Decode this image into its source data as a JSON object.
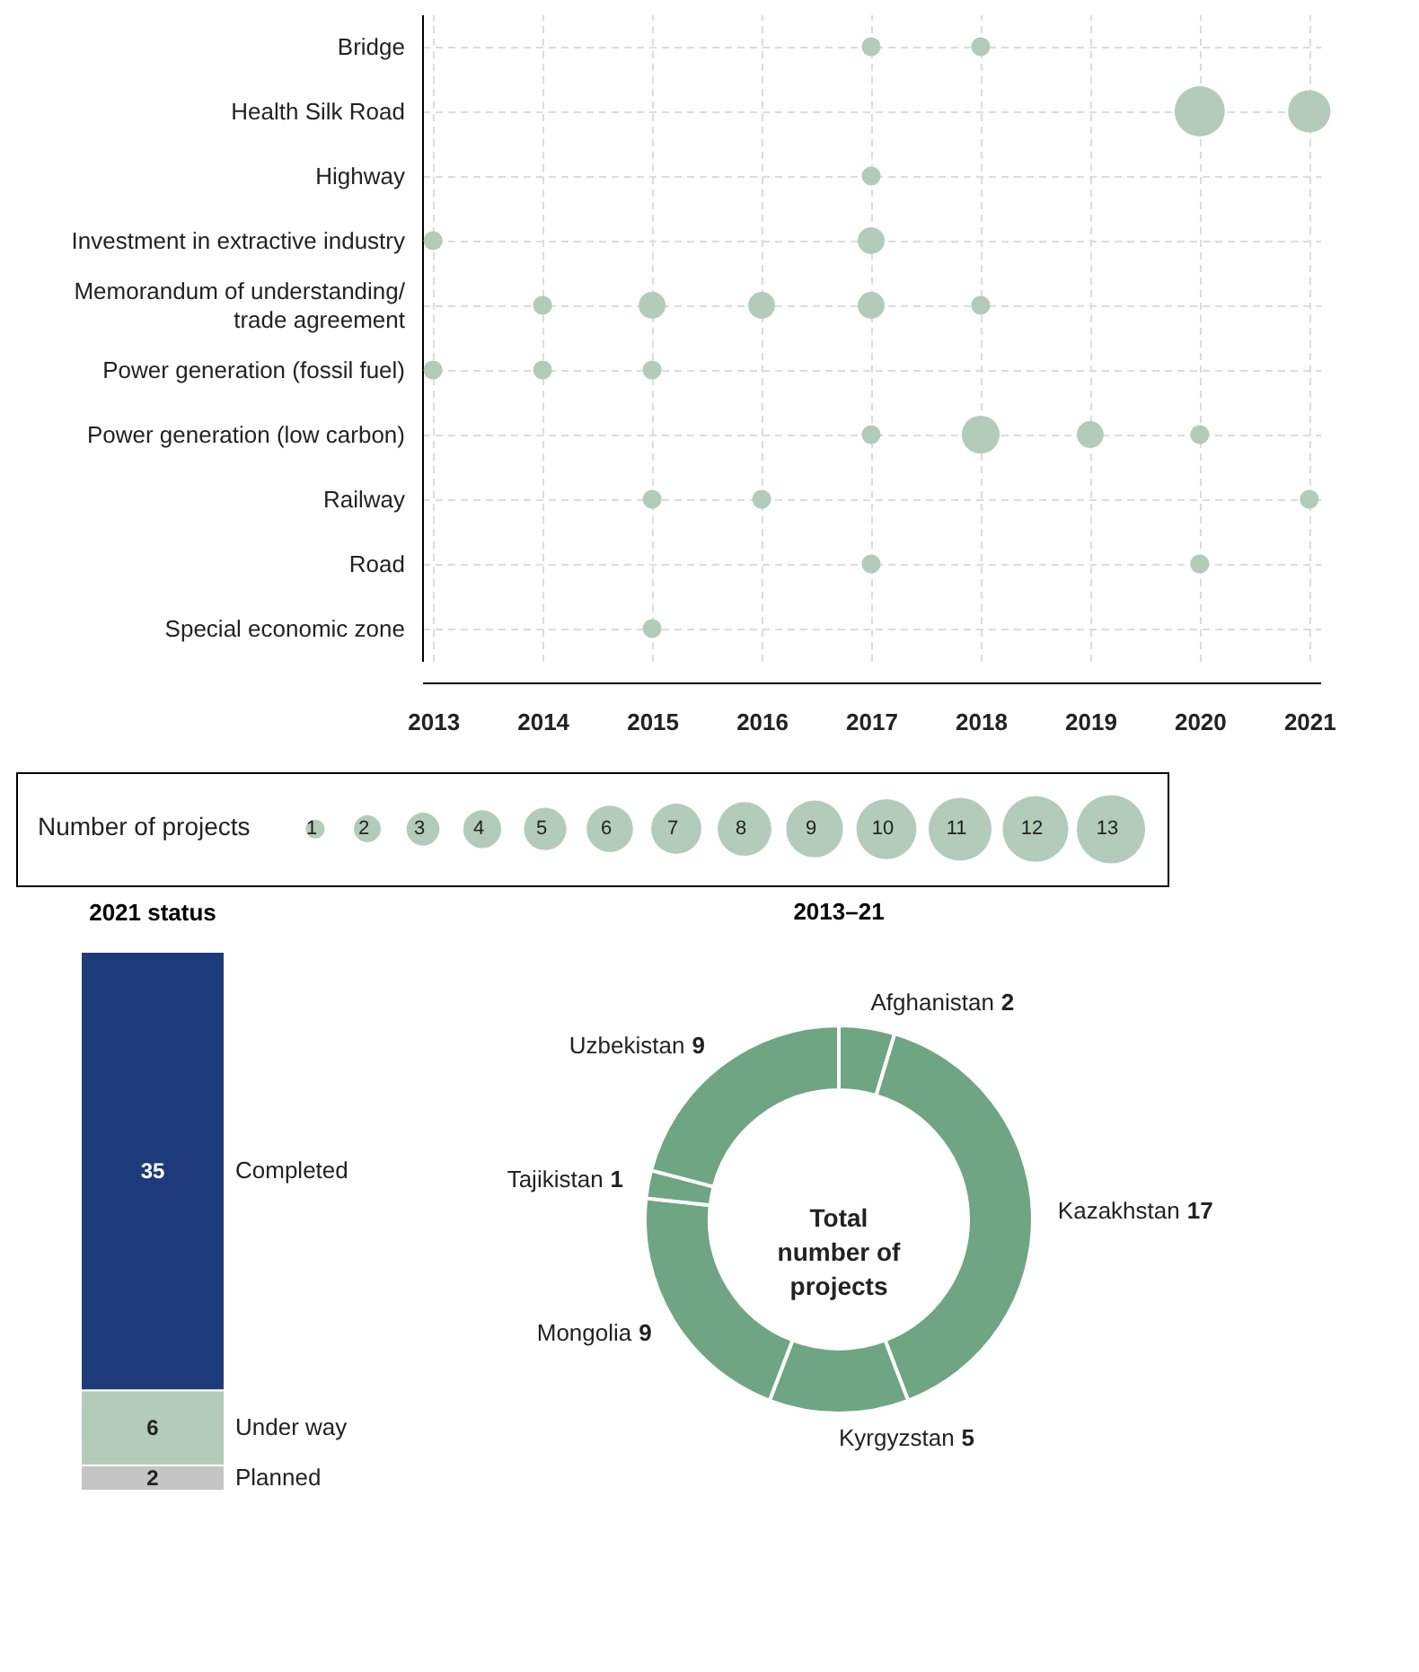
{
  "chart_data": [
    {
      "type": "bubble",
      "orientation": "horizontal",
      "categories": [
        "Bridge",
        "Health Silk Road",
        "Highway",
        "Investment in extractive industry",
        "Memorandum of understanding/ trade agreement",
        "Power generation (fossil fuel)",
        "Power generation (low carbon)",
        "Railway",
        "Road",
        "Special economic zone"
      ],
      "xlim": [
        2012.9,
        2021.1
      ],
      "xticks": [
        2013,
        2014,
        2015,
        2016,
        2017,
        2018,
        2019,
        2020,
        2021
      ],
      "grid": true,
      "legend_title": "Number of projects",
      "size_legend": [
        1,
        2,
        3,
        4,
        5,
        6,
        7,
        8,
        9,
        10,
        11,
        12,
        13
      ],
      "series": [
        {
          "color": "#b3cbb9",
          "values": [
            null,
            null,
            null,
            2013,
            null,
            2013,
            null,
            null,
            null,
            null
          ],
          "sizes": [
            null,
            null,
            null,
            1,
            null,
            1,
            null,
            null,
            null,
            null
          ]
        },
        {
          "color": "#b3cbb9",
          "values": [
            null,
            null,
            null,
            null,
            2014,
            2014,
            null,
            null,
            null,
            null
          ],
          "sizes": [
            null,
            null,
            null,
            null,
            1,
            1,
            null,
            null,
            null,
            null
          ]
        },
        {
          "color": "#b3cbb9",
          "values": [
            null,
            null,
            null,
            null,
            2015,
            2015,
            null,
            2015,
            null,
            2015
          ],
          "sizes": [
            null,
            null,
            null,
            null,
            2,
            1,
            null,
            1,
            null,
            1
          ]
        },
        {
          "color": "#b3cbb9",
          "values": [
            null,
            null,
            null,
            null,
            2016,
            null,
            null,
            2016,
            null,
            null
          ],
          "sizes": [
            null,
            null,
            null,
            null,
            2,
            null,
            null,
            1,
            null,
            null
          ]
        },
        {
          "color": "#b3cbb9",
          "values": [
            2017,
            null,
            2017,
            2017,
            2017,
            null,
            2017,
            null,
            2017,
            null
          ],
          "sizes": [
            1,
            null,
            1,
            2,
            2,
            null,
            1,
            null,
            1,
            null
          ]
        },
        {
          "color": "#b3cbb9",
          "values": [
            2018,
            null,
            null,
            null,
            2018,
            null,
            2018,
            null,
            null,
            null
          ],
          "sizes": [
            1,
            null,
            null,
            null,
            1,
            null,
            4,
            null,
            null,
            null
          ]
        },
        {
          "color": "#b3cbb9",
          "values": [
            null,
            null,
            null,
            null,
            null,
            null,
            2019,
            null,
            null,
            null
          ],
          "sizes": [
            null,
            null,
            null,
            null,
            null,
            null,
            2,
            null,
            null,
            null
          ]
        },
        {
          "color": "#b3cbb9",
          "values": [
            null,
            2020,
            null,
            null,
            null,
            null,
            2020,
            null,
            2020,
            null
          ],
          "sizes": [
            null,
            7,
            null,
            null,
            null,
            null,
            1,
            null,
            1,
            null
          ]
        },
        {
          "color": "#b3cbb9",
          "values": [
            null,
            2021,
            null,
            null,
            null,
            null,
            null,
            2021,
            null,
            null
          ],
          "sizes": [
            null,
            5,
            null,
            null,
            null,
            null,
            null,
            1,
            null,
            null
          ]
        }
      ]
    },
    {
      "type": "bar",
      "title": "2021 status",
      "stacked": true,
      "data_labels": true,
      "categories": [
        null
      ],
      "series": [
        {
          "name": "Planned",
          "color": "#c4c4c4",
          "values": [
            2
          ]
        },
        {
          "name": "Under way",
          "color": "#b3cbb9",
          "values": [
            6
          ]
        },
        {
          "name": "Completed",
          "color": "#1d3a7a",
          "values": [
            35
          ]
        }
      ]
    },
    {
      "type": "donut",
      "title": "2013–21",
      "categories": [
        "Afghanistan",
        "Kazakhstan",
        "Kyrgyzstan",
        "Mongolia",
        "Tajikistan",
        "Uzbekistan"
      ],
      "values": [
        2,
        17,
        5,
        9,
        1,
        9
      ],
      "colors": [
        "#6fa583",
        "#6fa583",
        "#6fa583",
        "#6fa583",
        "#6fa583",
        "#6fa583"
      ],
      "data_labels": true,
      "annotations": [
        "Total number of projects"
      ]
    }
  ]
}
